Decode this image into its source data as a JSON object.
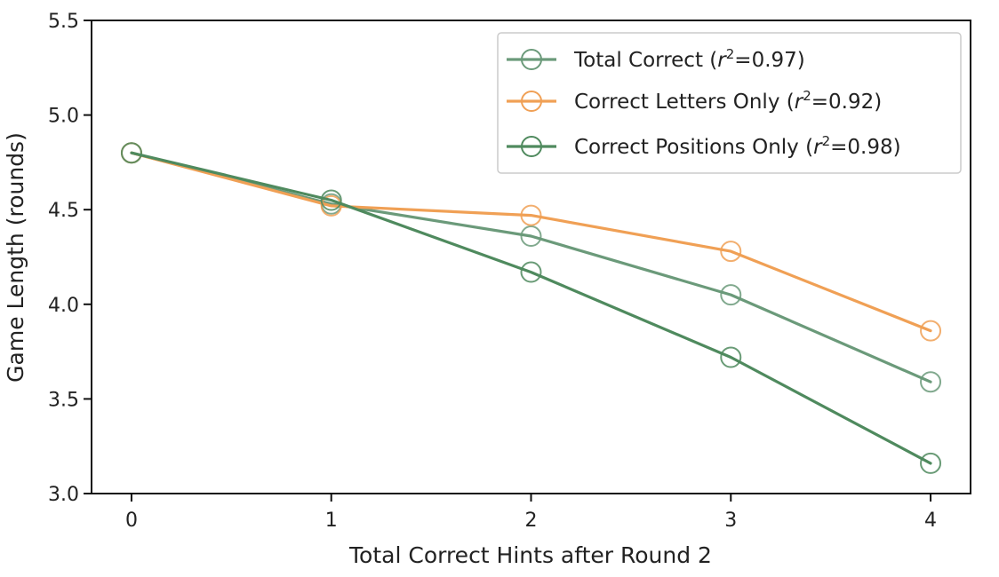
{
  "chart_data": {
    "type": "line",
    "xlabel": "Total Correct Hints after Round 2",
    "ylabel": "Game Length (rounds)",
    "x": [
      0,
      1,
      2,
      3,
      4
    ],
    "xticks": [
      "0",
      "1",
      "2",
      "3",
      "4"
    ],
    "yticks": [
      "3.0",
      "3.5",
      "4.0",
      "4.5",
      "5.0",
      "5.5"
    ],
    "xlim": [
      -0.2,
      4.2
    ],
    "ylim": [
      3.0,
      5.5
    ],
    "grid": false,
    "legend_position": "top-right",
    "series": [
      {
        "name": "Total Correct",
        "r2_label": "=0.97)",
        "color": "#6b9a7a",
        "values": [
          4.8,
          4.53,
          4.36,
          4.05,
          3.59
        ]
      },
      {
        "name": "Correct Letters Only",
        "r2_label": "=0.92)",
        "color": "#f0a055",
        "values": [
          4.8,
          4.52,
          4.47,
          4.28,
          3.86
        ]
      },
      {
        "name": "Correct Positions Only",
        "r2_label": "=0.98)",
        "color": "#4f8a5e",
        "values": [
          4.8,
          4.55,
          4.17,
          3.72,
          3.16
        ]
      }
    ]
  }
}
